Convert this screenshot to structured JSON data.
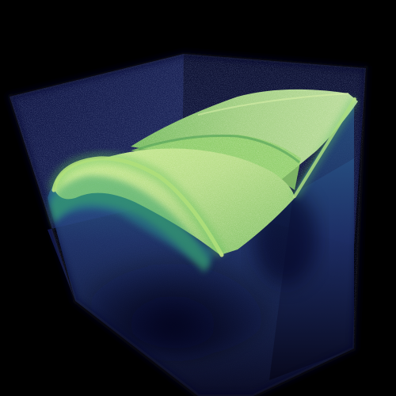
{
  "image": {
    "subject": "volumetric-render",
    "colormap": [
      "#000000",
      "#0d0f2e",
      "#1e2a5c",
      "#1f5f7a",
      "#2fa06a",
      "#8fd35a",
      "#e6f0a0"
    ],
    "background": "#000000",
    "box_tint": "#141a45",
    "tissue_edge": "#9be05a",
    "tissue_surface": "#c8e890",
    "deep_layer": "#2d4f86"
  }
}
